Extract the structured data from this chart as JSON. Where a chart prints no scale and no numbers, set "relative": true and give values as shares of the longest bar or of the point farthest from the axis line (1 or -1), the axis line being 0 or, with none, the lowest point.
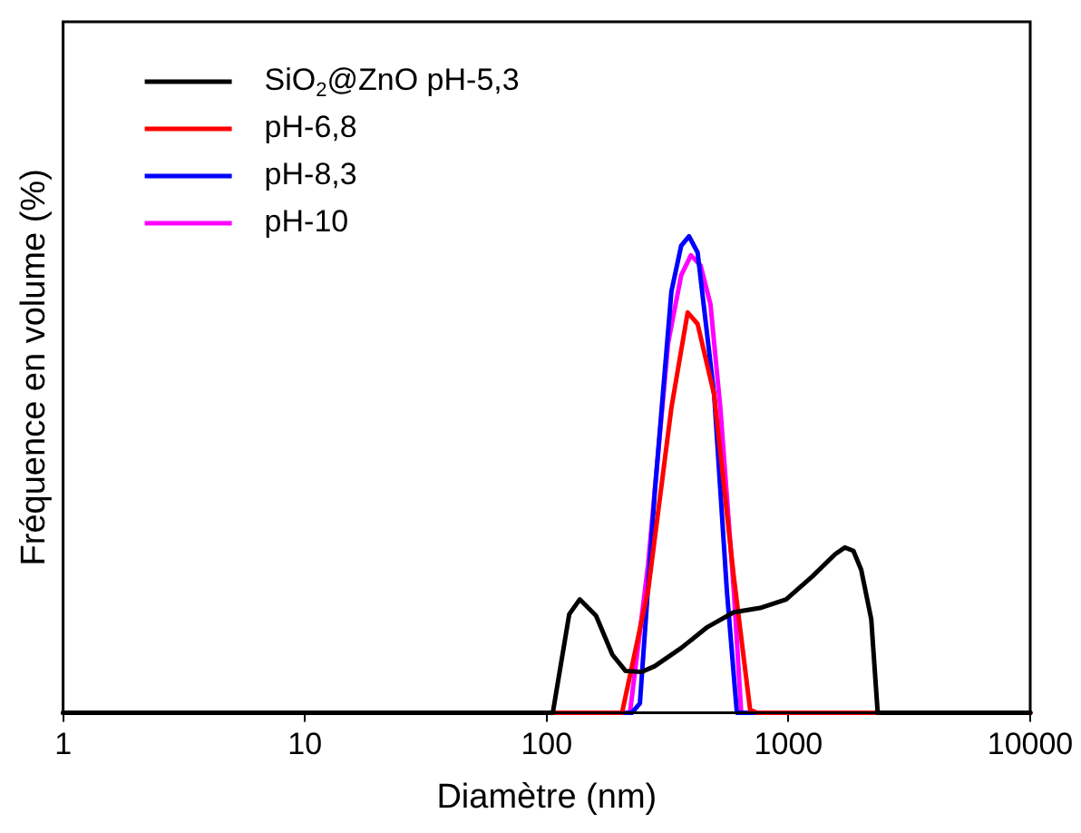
{
  "chart_data": {
    "type": "line",
    "xlabel": "Diamètre (nm)",
    "ylabel": "Fréquence en volume (%)",
    "relative": true,
    "log": "x",
    "xlim": [
      1,
      10000
    ],
    "xticks": [
      1,
      10,
      100,
      1000,
      10000
    ],
    "legend": "top left",
    "grid": false,
    "marker": "none",
    "line_style": "solid",
    "series": [
      {
        "name": "SiO$_{2}$@ZnO pH-5,3",
        "color": "#000000",
        "x": [
          1,
          106,
          124,
          137,
          160,
          187,
          212,
          247,
          280,
          360,
          462,
          594,
          762,
          978,
          1254,
          1560,
          1711,
          1856,
          2000,
          2200,
          2340,
          10000
        ],
        "values": [
          0,
          0,
          0.207,
          0.238,
          0.204,
          0.122,
          0.088,
          0.086,
          0.098,
          0.136,
          0.18,
          0.211,
          0.22,
          0.238,
          0.286,
          0.333,
          0.347,
          0.34,
          0.3,
          0.197,
          0,
          0
        ]
      },
      {
        "name": "pH-6,8",
        "color": "#ff0000",
        "x": [
          1,
          205,
          263,
          328,
          383,
          421,
          493,
          594,
          694,
          739,
          10000
        ],
        "values": [
          0,
          0,
          0.258,
          0.64,
          0.84,
          0.816,
          0.667,
          0.286,
          0.007,
          0,
          0
        ]
      },
      {
        "name": "pH-8,3",
        "color": "#0000ff",
        "x": [
          1,
          225,
          243,
          280,
          328,
          360,
          388,
          421,
          493,
          556,
          612,
          10000
        ],
        "values": [
          0,
          0,
          0.02,
          0.463,
          0.884,
          0.98,
          1,
          0.966,
          0.667,
          0.258,
          0,
          0
        ]
      },
      {
        "name": "pH-10",
        "color": "#ff00ff",
        "x": [
          1,
          221,
          263,
          318,
          360,
          395,
          433,
          476,
          523,
          594,
          638,
          10000
        ],
        "values": [
          0,
          0,
          0.313,
          0.776,
          0.918,
          0.96,
          0.939,
          0.857,
          0.639,
          0.258,
          0,
          0
        ]
      }
    ]
  }
}
